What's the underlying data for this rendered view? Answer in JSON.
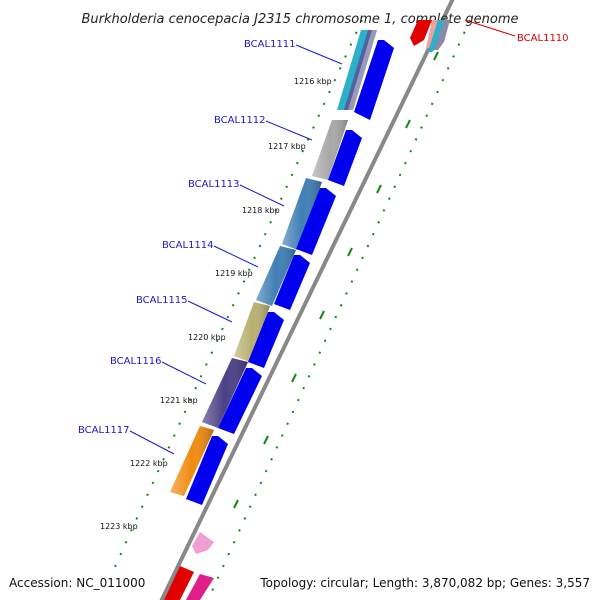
{
  "title": "Burkholderia cenocepacia J2315 chromosome 1, complete genome",
  "accession": "Accession: NC_011000",
  "topology": "Topology: circular; Length: 3,870,082 bp; Genes: 3,557",
  "genes": [
    {
      "id": "BCAL1111",
      "color": "#2ab0c8"
    },
    {
      "id": "BCAL1112",
      "color": "#a8a8a8"
    },
    {
      "id": "BCAL1113",
      "color": "#3f7fb4"
    },
    {
      "id": "BCAL1114",
      "color": "#3f7fb4"
    },
    {
      "id": "BCAL1115",
      "color": "#b8b070"
    },
    {
      "id": "BCAL1116",
      "color": "#4a3f85"
    },
    {
      "id": "BCAL1117",
      "color": "#f08a10"
    }
  ],
  "gene_top_right": {
    "id": "BCAL1110",
    "color": "#e00000"
  },
  "kbp_ticks": [
    "1216 kbp",
    "1217 kbp",
    "1218 kbp",
    "1219 kbp",
    "1220 kbp",
    "1221 kbp",
    "1222 kbp",
    "1223 kbp"
  ],
  "colors": {
    "strand_arrow": "#0000ee",
    "backbone": "#888888",
    "dotted_track": "#118811",
    "pink_feature": "#f0a0d0",
    "magenta_feature": "#e0208a",
    "label_line": "#1a1acc",
    "red_label_line": "#dd0000"
  }
}
